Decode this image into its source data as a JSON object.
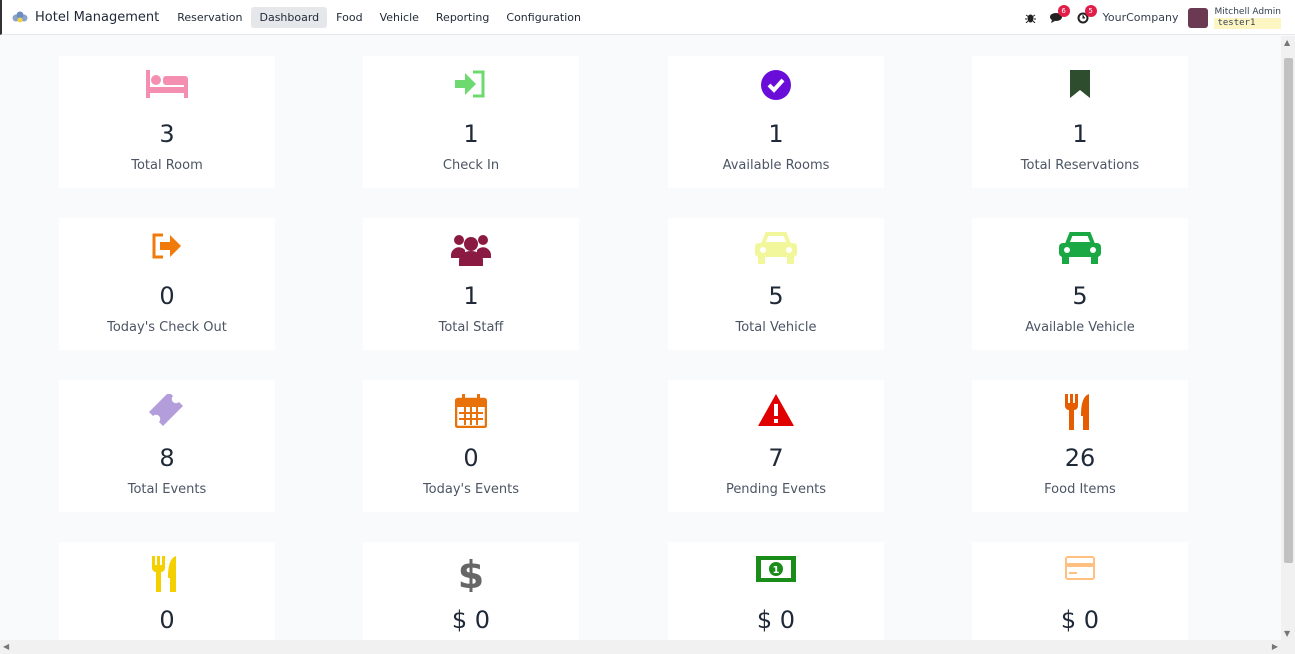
{
  "navbar": {
    "app_title": "Hotel Management",
    "menu": [
      "Reservation",
      "Dashboard",
      "Food",
      "Vehicle",
      "Reporting",
      "Configuration"
    ],
    "active": "Dashboard",
    "messages_count": "6",
    "activities_count": "5",
    "company": "YourCompany",
    "user_name": "Mitchell Admin",
    "database": "tester1"
  },
  "cards": [
    {
      "value": "3",
      "label": "Total Room",
      "icon": "bed-icon",
      "color": "#f48fb1"
    },
    {
      "value": "1",
      "label": "Check In",
      "icon": "sign-in-icon",
      "color": "#6ed96e"
    },
    {
      "value": "1",
      "label": "Available Rooms",
      "icon": "check-circle-icon",
      "color": "#6a0dd9"
    },
    {
      "value": "1",
      "label": "Total Reservations",
      "icon": "bookmark-icon",
      "color": "#2e4d2e"
    },
    {
      "value": "0",
      "label": "Today's Check Out",
      "icon": "sign-out-icon",
      "color": "#f07a0a"
    },
    {
      "value": "1",
      "label": "Total Staff",
      "icon": "users-icon",
      "color": "#8b1a43"
    },
    {
      "value": "5",
      "label": "Total Vehicle",
      "icon": "car-icon",
      "color": "#f1f79a"
    },
    {
      "value": "5",
      "label": "Available Vehicle",
      "icon": "car-icon",
      "color": "#1aa845"
    },
    {
      "value": "8",
      "label": "Total Events",
      "icon": "ticket-icon",
      "color": "#b39ddb"
    },
    {
      "value": "0",
      "label": "Today's Events",
      "icon": "calendar-icon",
      "color": "#e8710a"
    },
    {
      "value": "7",
      "label": "Pending Events",
      "icon": "warning-icon",
      "color": "#e00000"
    },
    {
      "value": "26",
      "label": "Food Items",
      "icon": "cutlery-icon",
      "color": "#e65c00"
    },
    {
      "value": "0",
      "label": "",
      "icon": "cutlery-icon",
      "color": "#f5d000"
    },
    {
      "value": "$ 0",
      "label": "",
      "icon": "dollar-icon",
      "color": "#666666"
    },
    {
      "value": "$ 0",
      "label": "",
      "icon": "money-icon",
      "color": "#1a8c1a"
    },
    {
      "value": "$ 0",
      "label": "",
      "icon": "credit-card-icon",
      "color": "#ffc080"
    }
  ]
}
